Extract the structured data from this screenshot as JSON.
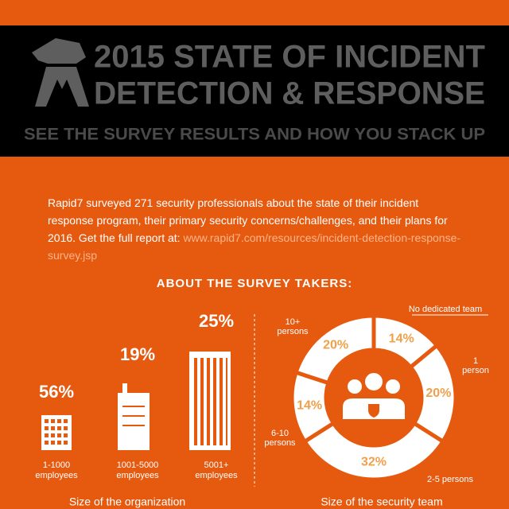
{
  "header": {
    "title_lines": [
      "2015 STATE OF INCIDENT",
      "DETECTION & RESPONSE"
    ],
    "subtitle": "SEE THE SURVEY RESULTS AND HOW YOU STACK UP"
  },
  "intro": {
    "text": "Rapid7 surveyed 271 security professionals about the state of their incident response program, their primary security concerns/challenges, and their plans for 2016. Get the full report at: ",
    "link": "www.rapid7.com/resources/incident-detection-response-survey.jsp"
  },
  "section_title": "ABOUT THE SURVEY TAKERS:",
  "organization": {
    "caption": "Size of the organization",
    "items": [
      {
        "percent": "56%",
        "label_lines": [
          "1-1000",
          "employees"
        ]
      },
      {
        "percent": "19%",
        "label_lines": [
          "1001-5000",
          "employees"
        ]
      },
      {
        "percent": "25%",
        "label_lines": [
          "5001+",
          "employees"
        ]
      }
    ]
  },
  "security_team": {
    "caption": "Size of the security team",
    "values": [
      14,
      20,
      32,
      14,
      20
    ],
    "value_labels": [
      "14%",
      "20%",
      "32%",
      "14%",
      "20%"
    ],
    "name_lines": [
      [
        "No dedicated team"
      ],
      [
        "1",
        "person"
      ],
      [
        "2-5 persons"
      ],
      [
        "6-10",
        "persons"
      ],
      [
        "10+",
        "persons"
      ]
    ]
  }
}
